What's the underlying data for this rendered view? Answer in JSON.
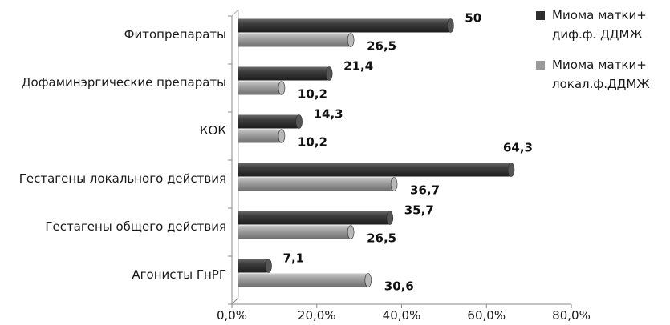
{
  "chart_data": {
    "type": "bar",
    "orientation": "horizontal",
    "categories": [
      "Фитопрепараты",
      "Дофаминэргические препараты",
      "КОК",
      "Гестагены локального действия",
      "Гестагены общего действия",
      "Агонисты ГнРГ"
    ],
    "series": [
      {
        "name": "Миома матки+ диф.ф. ДДМЖ",
        "legend_lines": [
          "Миома матки+",
          "диф.ф. ДДМЖ"
        ],
        "color": "#3a3a3a",
        "values": [
          50,
          21.4,
          14.3,
          64.3,
          35.7,
          7.1
        ],
        "labels": [
          "50",
          "21,4",
          "14,3",
          "64,3",
          "35,7",
          "7,1"
        ]
      },
      {
        "name": "Миома матки+ локал.ф.ДДМЖ",
        "legend_lines": [
          "Миома матки+",
          "локал.ф.ДДМЖ"
        ],
        "color": "#9a9a9a",
        "values": [
          26.5,
          10.2,
          10.2,
          36.7,
          26.5,
          30.6
        ],
        "labels": [
          "26,5",
          "10,2",
          "10,2",
          "36,7",
          "26,5",
          "30,6"
        ]
      }
    ],
    "xlim": [
      0,
      80
    ],
    "xticks": [
      0,
      20,
      40,
      60,
      80
    ],
    "xtick_labels": [
      "0,0%",
      "20,0%",
      "40,0%",
      "60,0%",
      "80,0%"
    ],
    "grid": false,
    "legend_position": "top-right",
    "style": "3d-cylinder"
  }
}
